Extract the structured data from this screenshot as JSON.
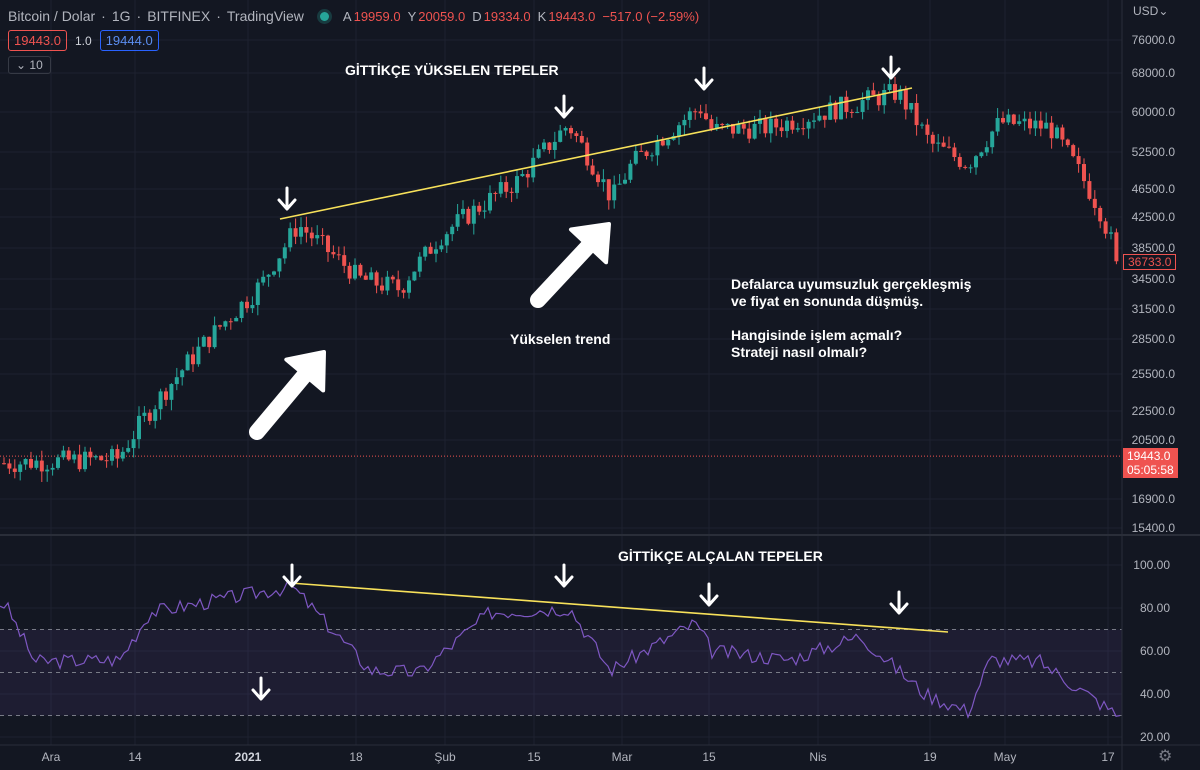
{
  "header": {
    "symbol": "Bitcoin / Dolar",
    "interval": "1G",
    "exchange": "BITFINEX",
    "source": "TradingView",
    "status_color": "#26a69a",
    "ohlc": [
      {
        "key": "A",
        "value": "19959.0"
      },
      {
        "key": "Y",
        "value": "20059.0"
      },
      {
        "key": "D",
        "value": "19334.0"
      },
      {
        "key": "K",
        "value": "19443.0"
      }
    ],
    "change": "−517.0 (−2.59%)"
  },
  "order_bar": {
    "sell": "19443.0",
    "spread": "1.0",
    "buy": "19444.0"
  },
  "indicator_length": "10",
  "currency_menu": "USD",
  "colors": {
    "background": "#131722",
    "up": "#26a69a",
    "down": "#ef5350",
    "trendline": "#f7e15a",
    "rsi_line": "#7e57c2",
    "arrow": "#ffffff"
  },
  "annotations": {
    "top_title": "GİTTİKÇE YÜKSELEN TEPELER",
    "trend_label": "Yükselen trend",
    "note_line1": "Defalarca uyumsuzluk gerçekleşmiş",
    "note_line2": "ve fiyat en sonunda düşmüş.",
    "note_line3": "Hangisinde işlem açmalı?",
    "note_line4": "Strateji nasıl olmalı?",
    "rsi_title": "GİTTİKÇE ALÇALAN TEPELER"
  },
  "price_labels": {
    "last": "19443.0",
    "countdown": "05:05:58",
    "marker": "36733.0"
  },
  "chart_data": [
    {
      "type": "candlestick",
      "title": "Bitcoin / Dolar · 1G · BITFINEX",
      "x_tick_labels": [
        "Ara",
        "14",
        "2021",
        "18",
        "Şub",
        "15",
        "Mar",
        "15",
        "Nis",
        "19",
        "May",
        "17"
      ],
      "y_tick_labels": [
        "76000.0",
        "68000.0",
        "60000.0",
        "52500.0",
        "46500.0",
        "42500.0",
        "38500.0",
        "34500.0",
        "31500.0",
        "28500.0",
        "25500.0",
        "22500.0",
        "20500.0",
        "16900.0",
        "15400.0"
      ],
      "yscale": "log",
      "ylim": [
        15400,
        76000
      ],
      "key_points": [
        {
          "x": "Ara",
          "y": 19000
        },
        {
          "x": "14",
          "y": 19300
        },
        {
          "x": "2021",
          "y": 34000
        },
        {
          "x": "2021",
          "y": 41500
        },
        {
          "x": "18",
          "y": 34500
        },
        {
          "x": "Şub",
          "y": 33500
        },
        {
          "x": "Şub",
          "y": 40000
        },
        {
          "x": "15",
          "y": 48000
        },
        {
          "x": "15",
          "y": 57500
        },
        {
          "x": "Mar",
          "y": 45000
        },
        {
          "x": "Mar",
          "y": 50500
        },
        {
          "x": "15",
          "y": 61000
        },
        {
          "x": "15",
          "y": 56500
        },
        {
          "x": "Nis",
          "y": 57000
        },
        {
          "x": "Nis",
          "y": 64000
        },
        {
          "x": "19",
          "y": 54000
        },
        {
          "x": "19",
          "y": 50500
        },
        {
          "x": "May",
          "y": 58000
        },
        {
          "x": "May",
          "y": 57000
        },
        {
          "x": "17",
          "y": 43500
        },
        {
          "x": "17",
          "y": 36733
        }
      ],
      "last_price": 19443.0
    },
    {
      "type": "line",
      "x_tick_labels": [
        "Ara",
        "14",
        "2021",
        "18",
        "Şub",
        "15",
        "Mar",
        "15",
        "Nis",
        "19",
        "May",
        "17"
      ],
      "y_tick_labels": [
        "100.00",
        "80.00",
        "60.00",
        "40.00",
        "20.00"
      ],
      "ylim": [
        20,
        100
      ],
      "levels": [
        70,
        50,
        30
      ],
      "key_points": [
        {
          "x": "Ara",
          "y": 82
        },
        {
          "x": "Ara",
          "y": 55
        },
        {
          "x": "14",
          "y": 56
        },
        {
          "x": "14",
          "y": 78
        },
        {
          "x": "2021",
          "y": 90
        },
        {
          "x": "18",
          "y": 51
        },
        {
          "x": "Şub",
          "y": 50
        },
        {
          "x": "15",
          "y": 78
        },
        {
          "x": "15",
          "y": 80
        },
        {
          "x": "Mar",
          "y": 51
        },
        {
          "x": "15",
          "y": 73
        },
        {
          "x": "15",
          "y": 60
        },
        {
          "x": "Nis",
          "y": 56
        },
        {
          "x": "Nis",
          "y": 67
        },
        {
          "x": "19",
          "y": 40
        },
        {
          "x": "19",
          "y": 32
        },
        {
          "x": "May",
          "y": 56
        },
        {
          "x": "May",
          "y": 55
        },
        {
          "x": "17",
          "y": 30
        }
      ]
    }
  ]
}
